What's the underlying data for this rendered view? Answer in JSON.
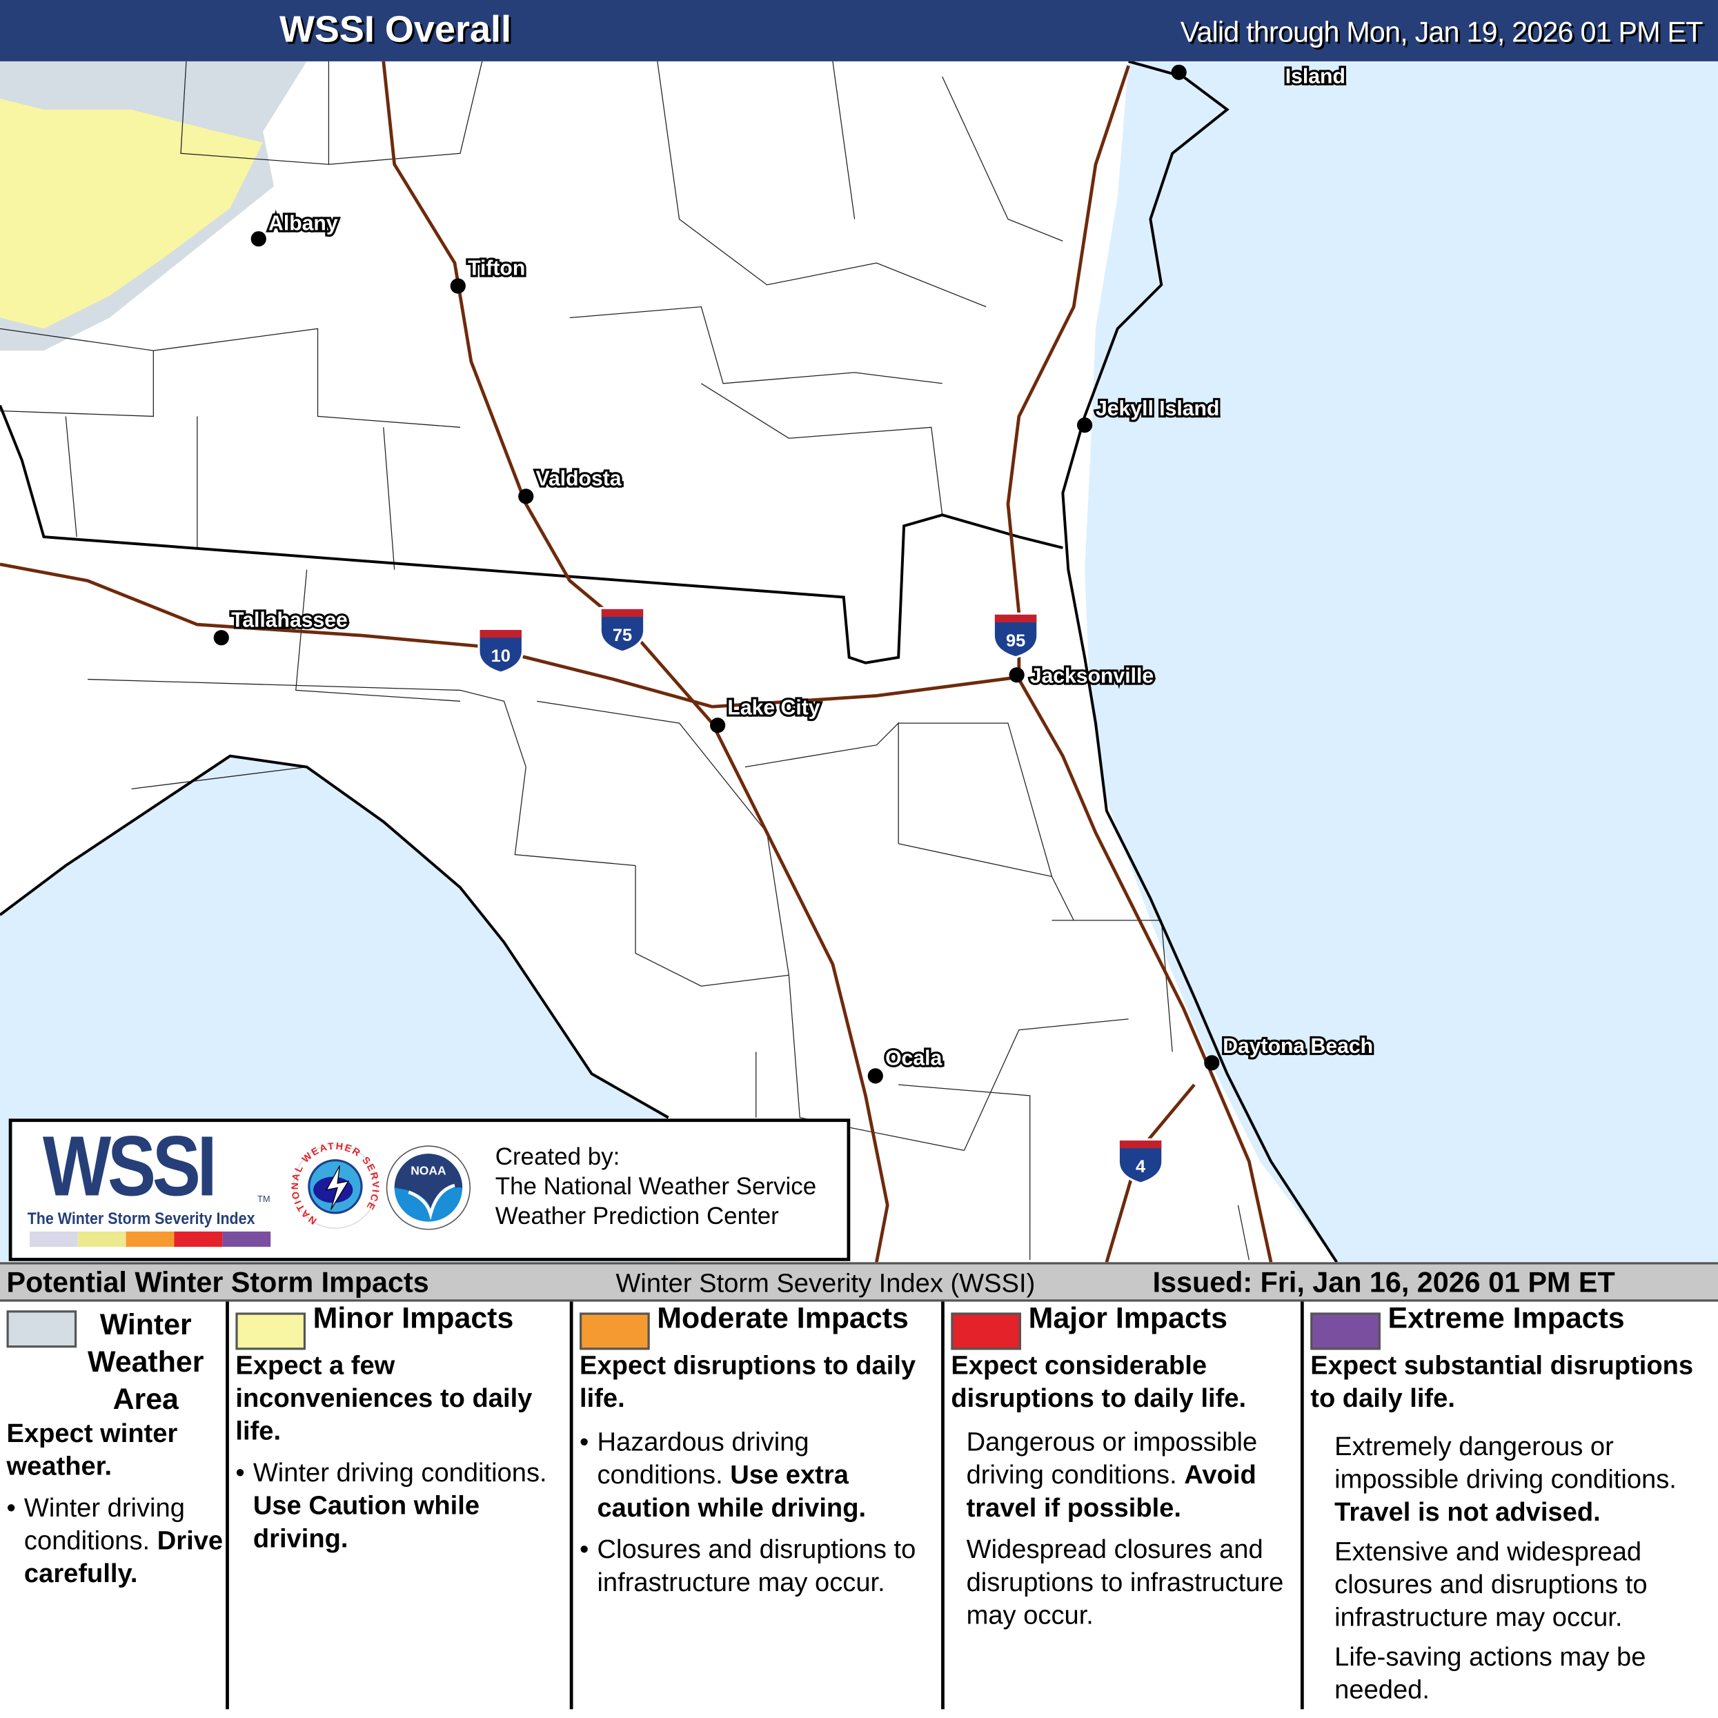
{
  "header": {
    "title": "WSSI Overall",
    "valid": "Valid through Mon, Jan 19, 2026 01 PM ET"
  },
  "colors": {
    "header_bg": "#263f79",
    "ocean": "#dcefff",
    "winter_area": "#d3dde3",
    "minor": "#f8f5a3",
    "moderate": "#f59a30",
    "major": "#e3222a",
    "extreme": "#7b4fa0",
    "interstate": "#6e2a0c"
  },
  "map": {
    "cities": [
      "Albany",
      "Tifton",
      "Valdosta",
      "Tallahassee",
      "Lake City",
      "Jacksonville",
      "Jekyll Island",
      "Daytona Beach",
      "Ocala",
      "Island"
    ],
    "interstates": [
      "10",
      "75",
      "95",
      "4"
    ]
  },
  "logo": {
    "wssi": "WSSI",
    "tm": "TM",
    "subtitle": "The Winter Storm Severity Index",
    "created_by": "Created by:",
    "org1": "The National Weather Service",
    "org2": "Weather Prediction Center",
    "nws_seal": "NATIONAL WEATHER SERVICE",
    "noaa_seal": "NOAA"
  },
  "bar": {
    "left": "Potential Winter Storm Impacts",
    "center": "Winter Storm Severity Index (WSSI)",
    "right": "Issued: Fri, Jan 16, 2026 01 PM ET"
  },
  "legend": [
    {
      "name": "Winter Weather Area",
      "head1": "Winter",
      "head2": "Weather",
      "head3": "Area",
      "summary": "Expect winter weather.",
      "b1": "Winter driving conditions.",
      "b1_bold": "Drive carefully."
    },
    {
      "name": "Minor Impacts",
      "summary": "Expect a few inconveniences to daily life.",
      "b1": "Winter driving conditions.",
      "b1_bold": "Use Caution while driving."
    },
    {
      "name": "Moderate Impacts",
      "summary": "Expect disruptions to daily life.",
      "b1": "Hazardous driving conditions.",
      "b1_bold": "Use extra caution while driving.",
      "b2": "Closures and disruptions to infrastructure may occur."
    },
    {
      "name": "Major Impacts",
      "summary": "Expect considerable disruptions to daily life.",
      "p1": "Dangerous or impossible driving conditions.",
      "p1_bold": "Avoid travel if possible.",
      "p2": "Widespread closures and disruptions to infrastructure may occur."
    },
    {
      "name": "Extreme Impacts",
      "summary": "Expect substantial disruptions to daily life.",
      "p1": "Extremely dangerous or impossible driving conditions.",
      "p1_bold": "Travel is not advised.",
      "p2": "Extensive and widespread closures and disruptions to infrastructure may occur.",
      "p3": "Life-saving actions may be needed."
    }
  ]
}
